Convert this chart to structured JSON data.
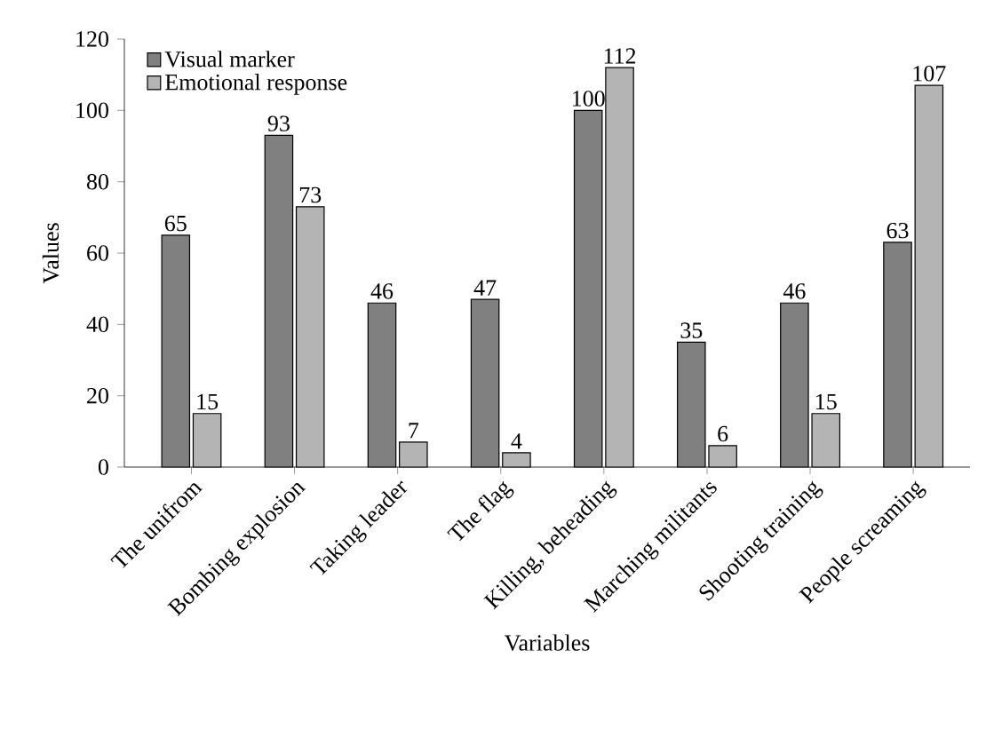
{
  "chart_data": {
    "type": "bar",
    "xlabel": "Variables",
    "ylabel": "Values",
    "categories": [
      "The unifrom",
      "Bombing explosion",
      "Taking leader",
      "The flag",
      "Killing, beheading",
      "Marching militants",
      "Shooting training",
      "People screaming"
    ],
    "series": [
      {
        "name": "Visual marker",
        "color": "#808080",
        "values": [
          65,
          93,
          46,
          47,
          100,
          35,
          46,
          63
        ]
      },
      {
        "name": "Emotional response",
        "color": "#b4b4b4",
        "values": [
          15,
          73,
          7,
          4,
          112,
          6,
          15,
          107
        ]
      }
    ],
    "ylim": [
      0,
      120
    ],
    "yticks": [
      0,
      20,
      40,
      60,
      80,
      100,
      120
    ],
    "data_labels": true,
    "legend": "top left",
    "grid": false
  }
}
